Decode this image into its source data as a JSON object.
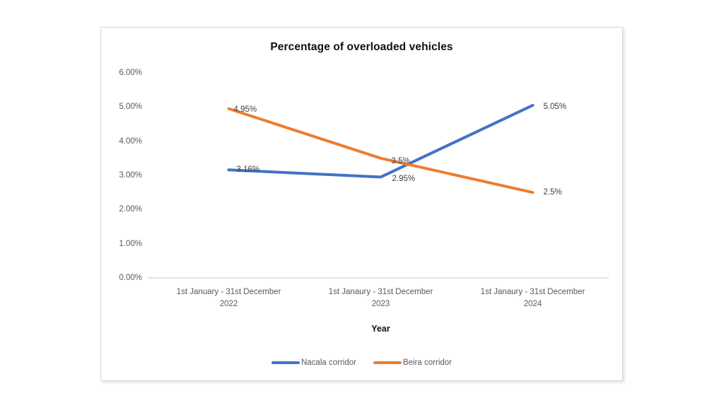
{
  "chart_data": {
    "type": "line",
    "title": "Percentage of overloaded vehicles",
    "xlabel": "Year",
    "ylabel": "",
    "categories": [
      "1st January - 31st December\n2022",
      "1st Janaury - 31st December\n2023",
      "1st Janaury - 31st December\n2024"
    ],
    "series": [
      {
        "name": "Nacala corridor",
        "color": "#4472C4",
        "values": [
          3.16,
          2.95,
          5.05
        ],
        "point_labels": [
          "3.16%",
          "2.95%",
          "5.05%"
        ]
      },
      {
        "name": "Beira corridor",
        "color": "#ED7D31",
        "values": [
          4.95,
          3.5,
          2.5
        ],
        "point_labels": [
          "4.95%",
          "3.5%",
          "2.5%"
        ]
      }
    ],
    "y_ticks": [
      "0.00%",
      "1.00%",
      "2.00%",
      "3.00%",
      "4.00%",
      "5.00%",
      "6.00%"
    ],
    "ylim": [
      0,
      6
    ],
    "grid": false,
    "legend_position": "bottom",
    "colors": {
      "axis_line": "#d9d9d9",
      "tick_label": "#595959",
      "data_label": "#404040",
      "title_text": "#111111"
    }
  }
}
